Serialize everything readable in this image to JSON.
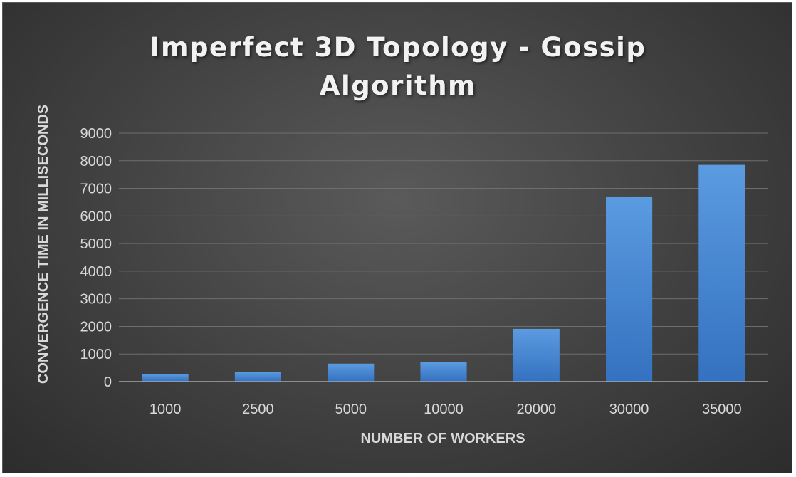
{
  "chart_data": {
    "type": "bar",
    "title": "Imperfect 3D Topology - Gossip Algorithm",
    "xlabel": "NUMBER OF WORKERS",
    "ylabel": "CONVERGENCE TIME IN MILLISECONDS",
    "categories": [
      "1000",
      "2500",
      "5000",
      "10000",
      "20000",
      "30000",
      "35000"
    ],
    "values": [
      280,
      350,
      650,
      710,
      1910,
      6680,
      7850
    ],
    "ylim": [
      0,
      9000
    ],
    "yticks": [
      "0",
      "1000",
      "2000",
      "3000",
      "4000",
      "5000",
      "6000",
      "7000",
      "8000",
      "9000"
    ],
    "grid": true,
    "legend": "none",
    "colors": {
      "bar": "#4f8fd6",
      "bar_dark": "#3a77c4",
      "grid": "#6e6e6e",
      "axis": "#a6a6a6",
      "text": "#d9d9d9"
    }
  }
}
